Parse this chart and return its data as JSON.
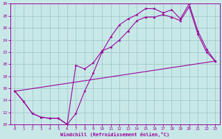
{
  "background_color": "#c8e8e8",
  "grid_color": "#a0c8c8",
  "line_color": "#990099",
  "xlabel": "Windchill (Refroidissement éolien,°C)",
  "xlabel_color": "#990099",
  "tick_color": "#990099",
  "xlim": [
    -0.5,
    23.5
  ],
  "ylim": [
    10,
    30
  ],
  "yticks": [
    10,
    12,
    14,
    16,
    18,
    20,
    22,
    24,
    26,
    28,
    30
  ],
  "xticks": [
    0,
    1,
    2,
    3,
    4,
    5,
    6,
    7,
    8,
    9,
    10,
    11,
    12,
    13,
    14,
    15,
    16,
    17,
    18,
    19,
    20,
    21,
    22,
    23
  ],
  "line1_x": [
    0,
    1,
    2,
    3,
    4,
    5,
    6,
    7,
    8,
    9,
    10,
    11,
    12,
    13,
    14,
    15,
    16,
    17,
    18,
    19,
    20,
    21,
    22,
    23
  ],
  "line1_y": [
    15.5,
    13.8,
    11.8,
    11.2,
    11.0,
    11.0,
    10.0,
    11.8,
    15.5,
    18.5,
    22.0,
    24.5,
    26.5,
    27.5,
    28.2,
    29.2,
    29.2,
    28.5,
    29.0,
    27.5,
    30.0,
    25.5,
    22.5,
    20.5
  ],
  "line2_x": [
    0,
    1,
    2,
    3,
    4,
    5,
    6,
    7,
    8,
    9,
    10,
    11,
    12,
    13,
    14,
    15,
    16,
    17,
    18,
    19,
    20,
    21,
    22,
    23
  ],
  "line2_y": [
    15.5,
    13.8,
    11.8,
    11.2,
    11.0,
    11.0,
    10.0,
    19.8,
    19.2,
    20.2,
    22.2,
    22.8,
    24.0,
    25.5,
    27.2,
    27.8,
    27.8,
    28.2,
    27.8,
    27.2,
    29.5,
    25.0,
    22.0,
    20.5
  ],
  "line3_x": [
    0,
    23
  ],
  "line3_y": [
    15.5,
    20.5
  ]
}
